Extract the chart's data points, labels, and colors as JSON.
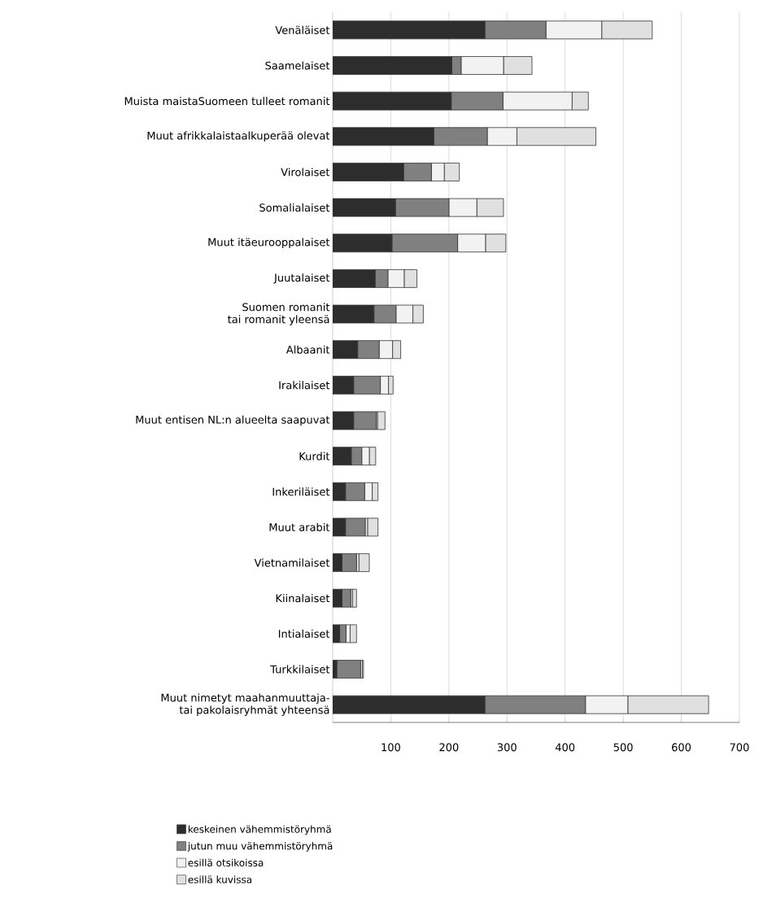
{
  "chart_data": {
    "type": "bar",
    "orientation": "horizontal",
    "stacked": true,
    "categories": [
      "Venäläiset",
      "Saamelaiset",
      "Muista maistaSuomeen tulleet romanit",
      "Muut afrikkalaistaalkuperää olevat",
      "Virolaiset",
      "Somalialaiset",
      "Muut itäeurooppalaiset",
      "Juutalaiset",
      "Suomen romanit\ntai romanit yleensä",
      "Albaanit",
      "Irakilaiset",
      "Muut entisen NL:n alueelta saapuvat",
      "Kurdit",
      "Inkeriläiset",
      "Muut arabit",
      "Vietnamilaiset",
      "Kiinalaiset",
      "Intialaiset",
      "Turkkilaiset",
      "Muut nimetyt maahanmuuttaja-\ntai pakolaisryhmät yhteensä"
    ],
    "series": [
      {
        "name": "keskeinen vähemmistöryhmä",
        "color": "#2d2d2d",
        "values": [
          262,
          205,
          204,
          174,
          122,
          108,
          102,
          73,
          71,
          43,
          36,
          36,
          32,
          22,
          22,
          16,
          16,
          12,
          7,
          262
        ]
      },
      {
        "name": "jutun muu vähemmistöryhmä",
        "color": "#808080",
        "values": [
          105,
          16,
          89,
          92,
          48,
          92,
          113,
          22,
          38,
          37,
          46,
          39,
          18,
          33,
          34,
          25,
          15,
          11,
          41,
          173
        ]
      },
      {
        "name": "esillä otsikoissa",
        "color": "#f2f2f2",
        "values": [
          96,
          73,
          119,
          51,
          22,
          48,
          48,
          28,
          29,
          23,
          14,
          2,
          13,
          13,
          4,
          4,
          3,
          7,
          3,
          73
        ]
      },
      {
        "name": "esillä kuvissa",
        "color": "#e0e0e0",
        "values": [
          87,
          49,
          28,
          136,
          26,
          46,
          35,
          22,
          18,
          14,
          8,
          13,
          11,
          10,
          18,
          18,
          7,
          11,
          2,
          139
        ]
      }
    ],
    "xlim": [
      0,
      700
    ],
    "xticks": [
      100,
      200,
      300,
      400,
      500,
      600,
      700
    ],
    "grid": "x",
    "legend": "bottom"
  }
}
